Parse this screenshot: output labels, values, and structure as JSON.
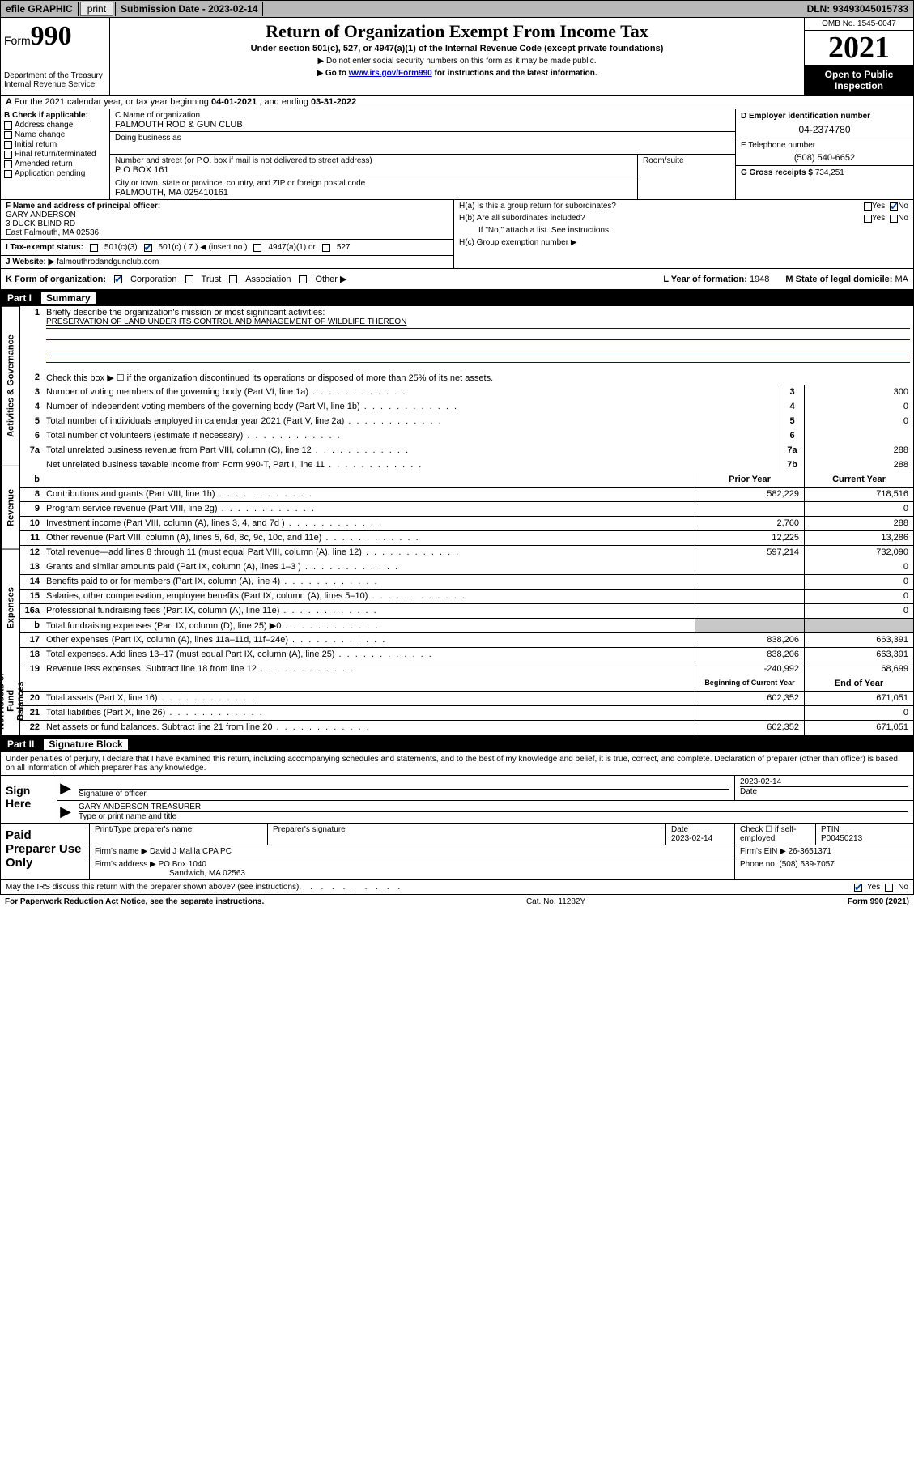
{
  "topbar": {
    "efile": "efile GRAPHIC",
    "print": "print",
    "submission_label": "Submission Date - ",
    "submission_date": "2023-02-14",
    "dln_label": "DLN: ",
    "dln": "93493045015733"
  },
  "header": {
    "form_word": "Form",
    "form_num": "990",
    "dept": "Department of the Treasury",
    "irs": "Internal Revenue Service",
    "title": "Return of Organization Exempt From Income Tax",
    "sub1": "Under section 501(c), 527, or 4947(a)(1) of the Internal Revenue Code (except private foundations)",
    "sub2": "▶ Do not enter social security numbers on this form as it may be made public.",
    "sub3_pre": "▶ Go to ",
    "sub3_link": "www.irs.gov/Form990",
    "sub3_post": " for instructions and the latest information.",
    "omb": "OMB No. 1545-0047",
    "year": "2021",
    "open": "Open to Public Inspection"
  },
  "row_a": {
    "label": "A",
    "text": "For the 2021 calendar year, or tax year beginning ",
    "begin": "04-01-2021",
    "mid": " , and ending ",
    "end": "03-31-2022"
  },
  "col_b": {
    "label": "B Check if applicable:",
    "items": [
      "Address change",
      "Name change",
      "Initial return",
      "Final return/terminated",
      "Amended return",
      "Application pending"
    ]
  },
  "col_c": {
    "name_lbl": "C Name of organization",
    "name": "FALMOUTH ROD & GUN CLUB",
    "dba_lbl": "Doing business as",
    "dba": "",
    "addr_lbl": "Number and street (or P.O. box if mail is not delivered to street address)",
    "addr": "P O BOX 161",
    "room_lbl": "Room/suite",
    "city_lbl": "City or town, state or province, country, and ZIP or foreign postal code",
    "city": "FALMOUTH, MA  025410161"
  },
  "col_d": {
    "ein_lbl": "D Employer identification number",
    "ein": "04-2374780",
    "phone_lbl": "E Telephone number",
    "phone": "(508) 540-6652",
    "gross_lbl": "G Gross receipts $ ",
    "gross": "734,251"
  },
  "section_f": {
    "f_lbl": "F  Name and address of principal officer:",
    "f_name": "GARY ANDERSON",
    "f_addr1": "3 DUCK BLIND RD",
    "f_addr2": "East Falmouth, MA  02536",
    "i_lbl": "I   Tax-exempt status:",
    "i_opts": [
      "501(c)(3)",
      "501(c) ( 7 ) ◀ (insert no.)",
      "4947(a)(1) or",
      "527"
    ],
    "j_lbl": "J   Website: ▶ ",
    "j_val": "falmouthrodandgunclub.com"
  },
  "section_h": {
    "ha_lbl": "H(a)  Is this a group return for subordinates?",
    "hb_lbl": "H(b)  Are all subordinates included?",
    "hb_note": "If \"No,\" attach a list. See instructions.",
    "hc_lbl": "H(c)  Group exemption number ▶",
    "yes": "Yes",
    "no": "No"
  },
  "row_k": {
    "k_lbl": "K Form of organization:",
    "opts": [
      "Corporation",
      "Trust",
      "Association",
      "Other ▶"
    ],
    "l_lbl": "L Year of formation: ",
    "l_val": "1948",
    "m_lbl": "M State of legal domicile: ",
    "m_val": "MA"
  },
  "part1": {
    "label": "Part I",
    "title": "Summary"
  },
  "summary": {
    "tab1": "Activities & Governance",
    "tab2": "Revenue",
    "tab3": "Expenses",
    "tab4": "Net Assets or Fund Balances",
    "line1_lbl": "Briefly describe the organization's mission or most significant activities:",
    "line1_val": "PRESERVATION OF LAND UNDER ITS CONTROL AND MANAGEMENT OF WILDLIFE THEREON",
    "line2": "Check this box ▶ ☐  if the organization discontinued its operations or disposed of more than 25% of its net assets.",
    "lines_gov": [
      {
        "n": "3",
        "d": "Number of voting members of the governing body (Part VI, line 1a)",
        "box": "3",
        "v": "300"
      },
      {
        "n": "4",
        "d": "Number of independent voting members of the governing body (Part VI, line 1b)",
        "box": "4",
        "v": "0"
      },
      {
        "n": "5",
        "d": "Total number of individuals employed in calendar year 2021 (Part V, line 2a)",
        "box": "5",
        "v": "0"
      },
      {
        "n": "6",
        "d": "Total number of volunteers (estimate if necessary)",
        "box": "6",
        "v": ""
      },
      {
        "n": "7a",
        "d": "Total unrelated business revenue from Part VIII, column (C), line 12",
        "box": "7a",
        "v": "288"
      },
      {
        "n": "",
        "d": "Net unrelated business taxable income from Form 990-T, Part I, line 11",
        "box": "7b",
        "v": "288"
      }
    ],
    "col_hdr_b": "b",
    "col_hdr_prior": "Prior Year",
    "col_hdr_current": "Current Year",
    "lines_rev": [
      {
        "n": "8",
        "d": "Contributions and grants (Part VIII, line 1h)",
        "p": "582,229",
        "c": "718,516"
      },
      {
        "n": "9",
        "d": "Program service revenue (Part VIII, line 2g)",
        "p": "",
        "c": "0"
      },
      {
        "n": "10",
        "d": "Investment income (Part VIII, column (A), lines 3, 4, and 7d )",
        "p": "2,760",
        "c": "288"
      },
      {
        "n": "11",
        "d": "Other revenue (Part VIII, column (A), lines 5, 6d, 8c, 9c, 10c, and 11e)",
        "p": "12,225",
        "c": "13,286"
      },
      {
        "n": "12",
        "d": "Total revenue—add lines 8 through 11 (must equal Part VIII, column (A), line 12)",
        "p": "597,214",
        "c": "732,090"
      }
    ],
    "lines_exp": [
      {
        "n": "13",
        "d": "Grants and similar amounts paid (Part IX, column (A), lines 1–3 )",
        "p": "",
        "c": "0"
      },
      {
        "n": "14",
        "d": "Benefits paid to or for members (Part IX, column (A), line 4)",
        "p": "",
        "c": "0"
      },
      {
        "n": "15",
        "d": "Salaries, other compensation, employee benefits (Part IX, column (A), lines 5–10)",
        "p": "",
        "c": "0"
      },
      {
        "n": "16a",
        "d": "Professional fundraising fees (Part IX, column (A), line 11e)",
        "p": "",
        "c": "0"
      },
      {
        "n": "b",
        "d": "Total fundraising expenses (Part IX, column (D), line 25) ▶0",
        "p": "shade",
        "c": "shade"
      },
      {
        "n": "17",
        "d": "Other expenses (Part IX, column (A), lines 11a–11d, 11f–24e)",
        "p": "838,206",
        "c": "663,391"
      },
      {
        "n": "18",
        "d": "Total expenses. Add lines 13–17 (must equal Part IX, column (A), line 25)",
        "p": "838,206",
        "c": "663,391"
      },
      {
        "n": "19",
        "d": "Revenue less expenses. Subtract line 18 from line 12",
        "p": "-240,992",
        "c": "68,699"
      }
    ],
    "col_hdr_begin": "Beginning of Current Year",
    "col_hdr_end": "End of Year",
    "lines_net": [
      {
        "n": "20",
        "d": "Total assets (Part X, line 16)",
        "p": "602,352",
        "c": "671,051"
      },
      {
        "n": "21",
        "d": "Total liabilities (Part X, line 26)",
        "p": "",
        "c": "0"
      },
      {
        "n": "22",
        "d": "Net assets or fund balances. Subtract line 21 from line 20",
        "p": "602,352",
        "c": "671,051"
      }
    ]
  },
  "part2": {
    "label": "Part II",
    "title": "Signature Block",
    "text": "Under penalties of perjury, I declare that I have examined this return, including accompanying schedules and statements, and to the best of my knowledge and belief, it is true, correct, and complete. Declaration of preparer (other than officer) is based on all information of which preparer has any knowledge."
  },
  "sign": {
    "left": "Sign Here",
    "sig_lbl": "Signature of officer",
    "date_lbl": "Date",
    "date_val": "2023-02-14",
    "name_val": "GARY ANDERSON  TREASURER",
    "name_lbl": "Type or print name and title"
  },
  "preparer": {
    "left": "Paid Preparer Use Only",
    "r1": {
      "c1": "Print/Type preparer's name",
      "c2": "Preparer's signature",
      "c3": "Date",
      "c3v": "2023-02-14",
      "c4": "Check ☐ if self-employed",
      "c5": "PTIN",
      "c5v": "P00450213"
    },
    "r2": {
      "lbl": "Firm's name     ▶ ",
      "val": "David J Malila CPA PC",
      "ein_lbl": "Firm's EIN ▶ ",
      "ein": "26-3651371"
    },
    "r3": {
      "lbl": "Firm's address ▶ ",
      "val1": "PO Box 1040",
      "val2": "Sandwich, MA  02563",
      "ph_lbl": "Phone no. ",
      "ph": "(508) 539-7057"
    }
  },
  "footer": {
    "q": "May the IRS discuss this return with the preparer shown above? (see instructions)",
    "yes": "Yes",
    "no": "No",
    "paperwork": "For Paperwork Reduction Act Notice, see the separate instructions.",
    "cat": "Cat. No. 11282Y",
    "form": "Form 990 (2021)"
  },
  "colors": {
    "link": "#0000cc",
    "check": "#0047ab",
    "shade": "#c8c8c8",
    "topbar": "#b8b8b8"
  }
}
